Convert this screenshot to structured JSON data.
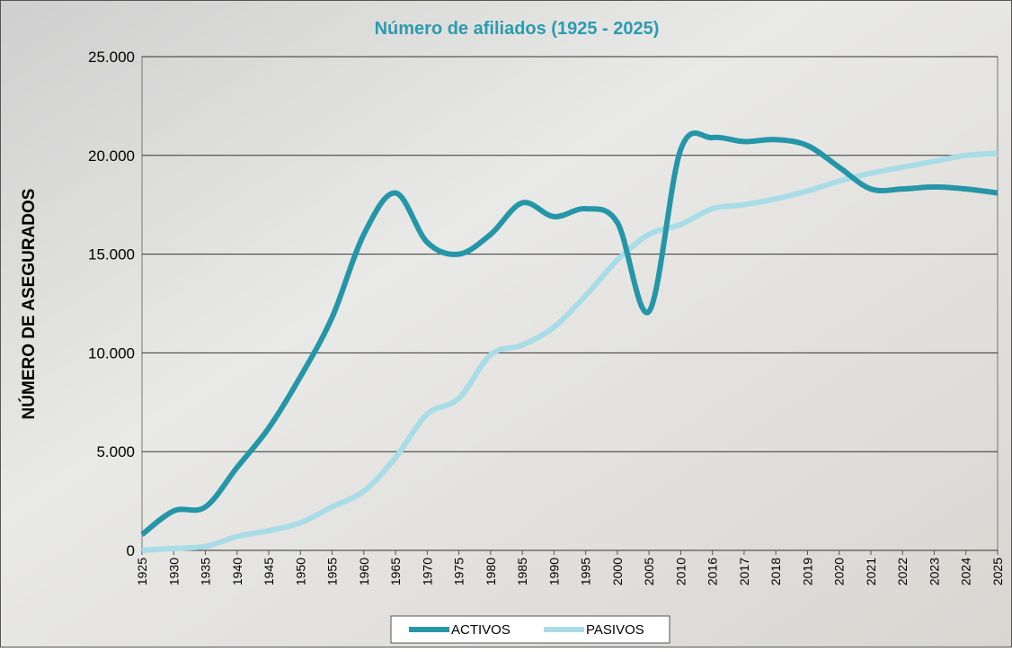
{
  "chart_data": {
    "type": "line",
    "title": "Número de afiliados (1925 - 2025)",
    "y_label": "NÚMERO DE ASEGURADOS",
    "categories": [
      "1925",
      "1930",
      "1935",
      "1940",
      "1945",
      "1950",
      "1955",
      "1960",
      "1965",
      "1970",
      "1975",
      "1980",
      "1985",
      "1990",
      "1995",
      "2000",
      "2005",
      "2010",
      "2016",
      "2017",
      "2018",
      "2019",
      "2020",
      "2021",
      "2022",
      "2023",
      "2024",
      "2025"
    ],
    "series": [
      {
        "name": "ACTIVOS",
        "color": "#2596a8",
        "values": [
          800,
          2000,
          2200,
          4200,
          6200,
          8800,
          11800,
          16000,
          18100,
          15600,
          15000,
          16000,
          17600,
          16900,
          17300,
          16600,
          12100,
          20300,
          20900,
          20700,
          20800,
          20500,
          19400,
          18300,
          18300,
          18400,
          18300,
          18100
        ]
      },
      {
        "name": "PASIVOS",
        "color": "#a8dce6",
        "values": [
          0,
          100,
          200,
          700,
          1000,
          1400,
          2200,
          3000,
          4700,
          6900,
          7700,
          9900,
          10400,
          11300,
          12900,
          14700,
          16000,
          16500,
          17300,
          17500,
          17800,
          18200,
          18700,
          19100,
          19400,
          19700,
          20000,
          20100
        ]
      }
    ],
    "ylim": [
      0,
      25000
    ],
    "yticks": [
      0,
      {
        "value": 5000,
        "label": "5.000"
      },
      {
        "value": 10000,
        "label": "10.000"
      },
      {
        "value": 15000,
        "label": "15.000"
      },
      {
        "value": 20000,
        "label": "20.000"
      },
      {
        "value": 25000,
        "label": "25.000"
      }
    ],
    "grid": true,
    "legend": "bottom"
  }
}
